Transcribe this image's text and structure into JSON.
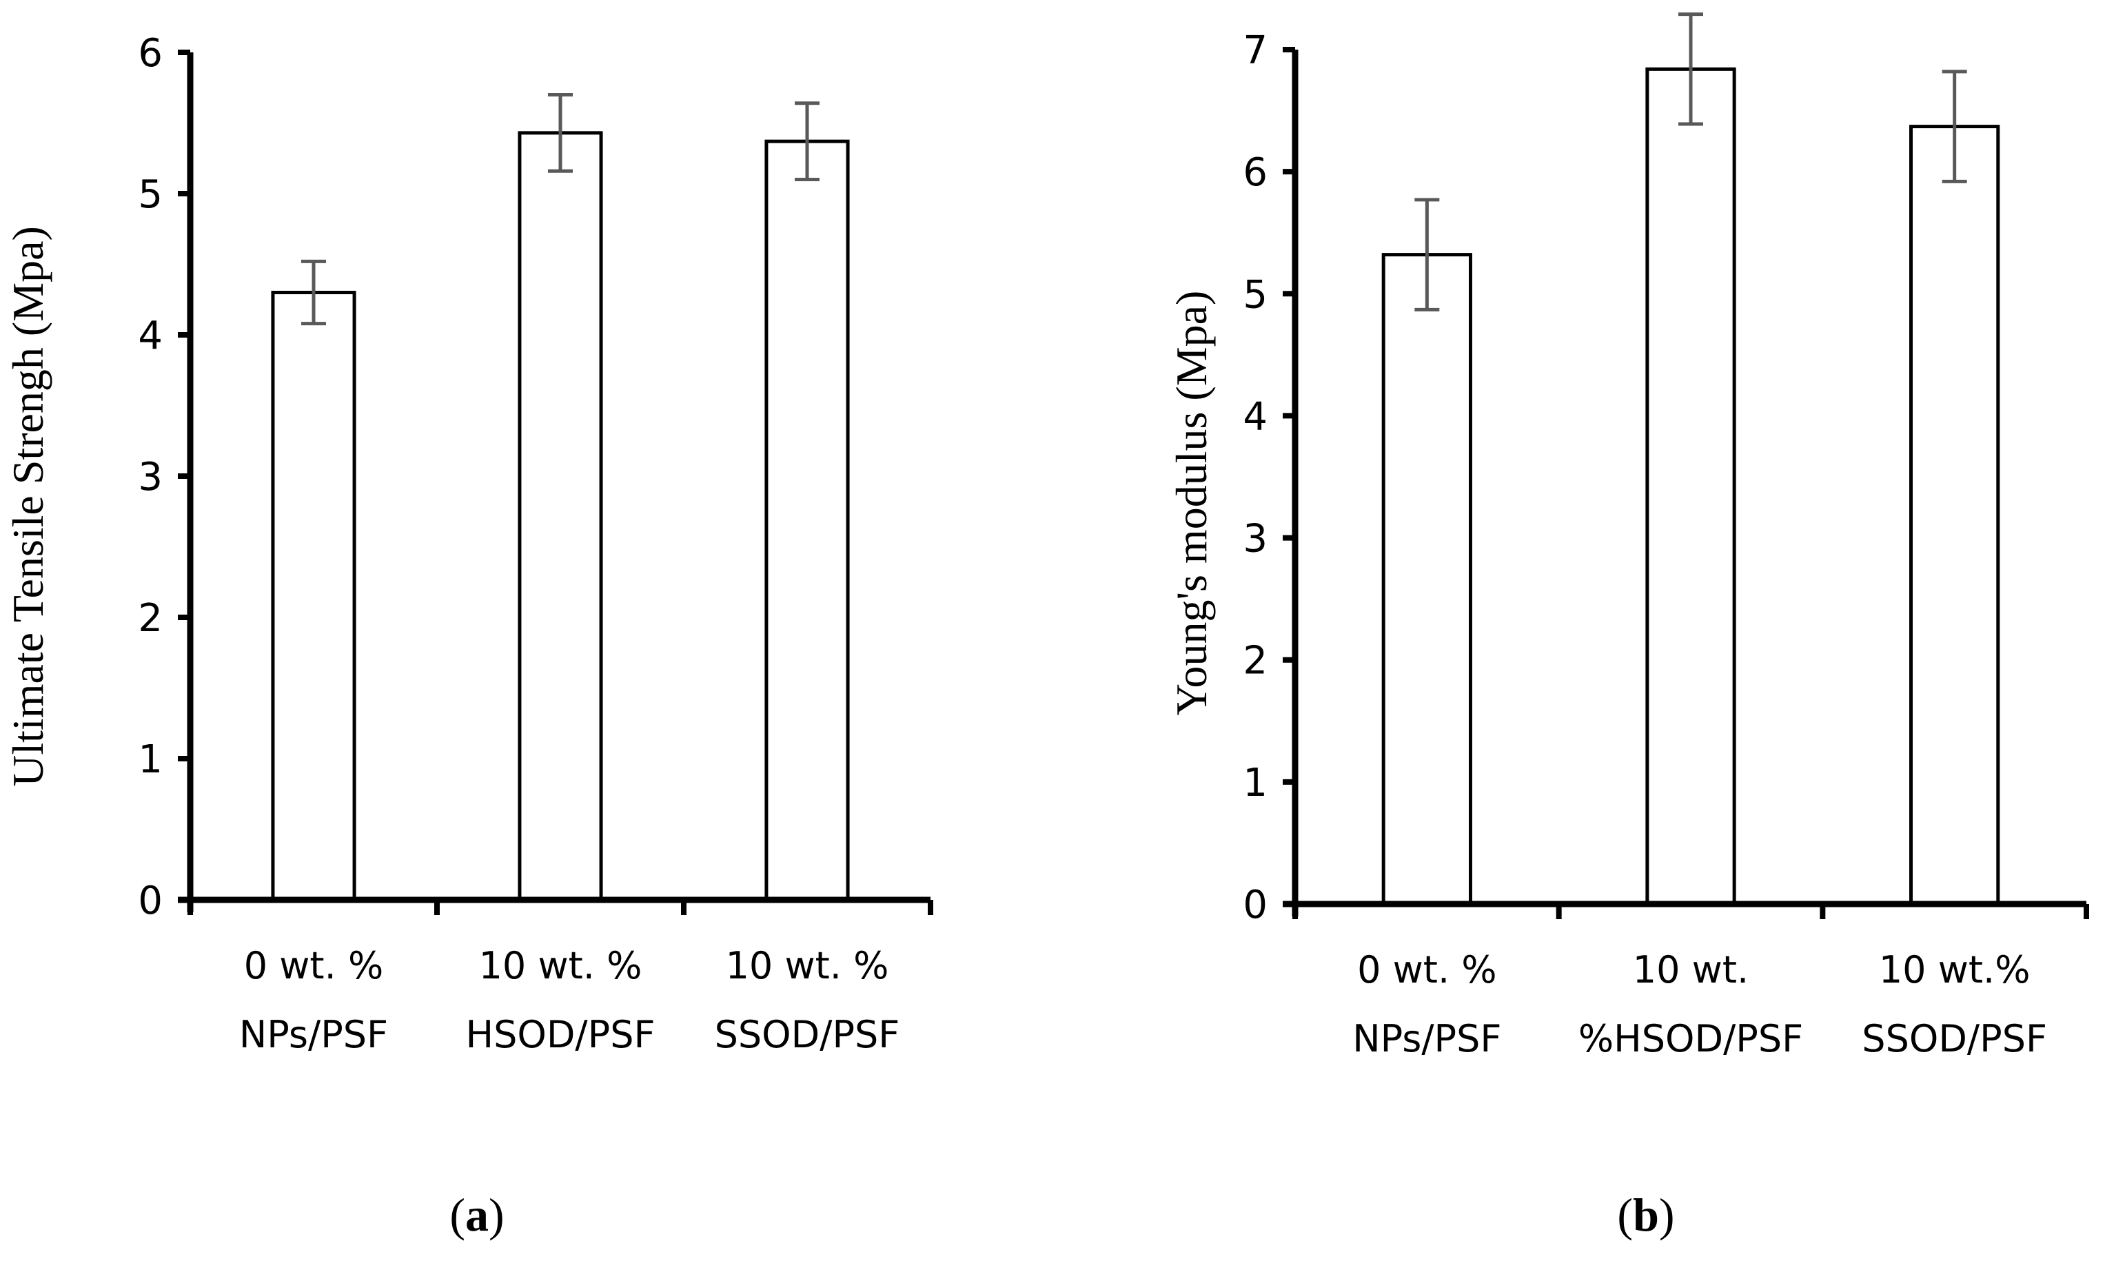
{
  "chart_data": [
    {
      "type": "bar",
      "panel_label": "a",
      "title": "",
      "xlabel": "",
      "ylabel": "Ultimate Tensile Strengh (Mpa)",
      "ylim": [
        0,
        6
      ],
      "ytick_step": 1,
      "categories": [
        [
          "0 wt. %",
          "NPs/PSF"
        ],
        [
          "10 wt. %",
          "HSOD/PSF"
        ],
        [
          "10 wt. %",
          "SSOD/PSF"
        ]
      ],
      "values": [
        4.3,
        5.43,
        5.37
      ],
      "errors": [
        0.22,
        0.27,
        0.27
      ],
      "colors": {
        "bar_fill": "#ffffff",
        "bar_stroke": "#000000",
        "axis": "#000000",
        "error_bar": "#595959"
      }
    },
    {
      "type": "bar",
      "panel_label": "b",
      "title": "",
      "xlabel": "",
      "ylabel": "Young's modulus (Mpa)",
      "ylim": [
        0,
        7
      ],
      "ytick_step": 1,
      "categories": [
        [
          "0 wt. %",
          "NPs/PSF"
        ],
        [
          "10 wt.",
          "%HSOD/PSF"
        ],
        [
          "10 wt.%",
          "SSOD/PSF"
        ]
      ],
      "values": [
        5.32,
        6.84,
        6.37
      ],
      "errors": [
        0.45,
        0.45,
        0.45
      ],
      "colors": {
        "bar_fill": "#ffffff",
        "bar_stroke": "#000000",
        "axis": "#000000",
        "error_bar": "#595959"
      }
    }
  ]
}
